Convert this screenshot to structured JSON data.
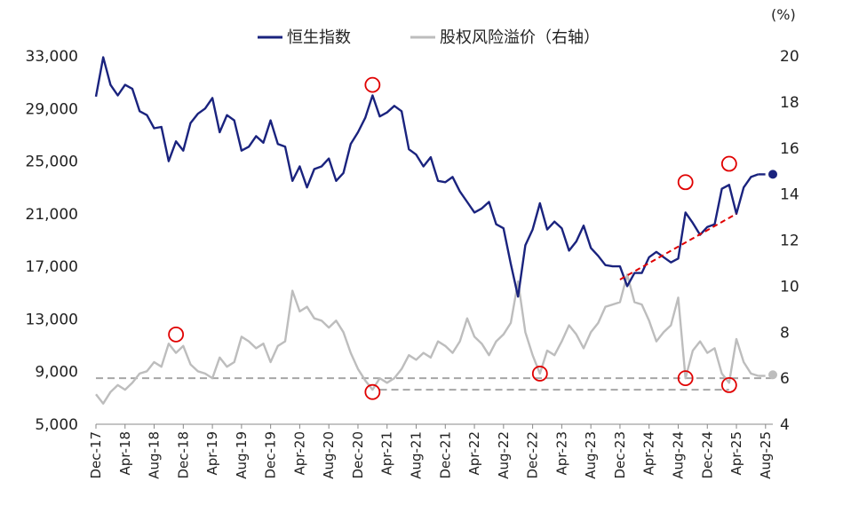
{
  "chart_data": {
    "type": "line",
    "legend": [
      {
        "label": "恒生指数",
        "color": "#1a237e"
      },
      {
        "label": "股权风险溢价（右轴）",
        "color": "#bdbdbd"
      }
    ],
    "unit_right": "(%)",
    "y_left": {
      "ticks": [
        "5,000",
        "9,000",
        "13,000",
        "17,000",
        "21,000",
        "25,000",
        "29,000",
        "33,000"
      ],
      "range": [
        5000,
        33000
      ]
    },
    "y_right": {
      "ticks": [
        "4",
        "6",
        "8",
        "10",
        "12",
        "14",
        "16",
        "18",
        "20"
      ],
      "range": [
        4,
        20
      ]
    },
    "x_ticks": [
      "Dec-17",
      "Apr-18",
      "Aug-18",
      "Dec-18",
      "Apr-19",
      "Aug-19",
      "Dec-19",
      "Apr-20",
      "Aug-20",
      "Dec-20",
      "Apr-21",
      "Aug-21",
      "Dec-21",
      "Apr-22",
      "Aug-22",
      "Dec-22",
      "Apr-23",
      "Aug-23",
      "Dec-23",
      "Apr-24",
      "Aug-24",
      "Dec-24",
      "Apr-25",
      "Aug-25"
    ],
    "series": [
      {
        "name": "恒生指数",
        "axis": "left",
        "color": "#1a237e",
        "points": [
          [
            "2017-12",
            29900
          ],
          [
            "2018-01",
            32900
          ],
          [
            "2018-02",
            30800
          ],
          [
            "2018-03",
            30000
          ],
          [
            "2018-04",
            30800
          ],
          [
            "2018-05",
            30500
          ],
          [
            "2018-06",
            28800
          ],
          [
            "2018-07",
            28500
          ],
          [
            "2018-08",
            27500
          ],
          [
            "2018-09",
            27600
          ],
          [
            "2018-10",
            25000
          ],
          [
            "2018-11",
            26500
          ],
          [
            "2018-12",
            25800
          ],
          [
            "2019-01",
            27900
          ],
          [
            "2019-02",
            28600
          ],
          [
            "2019-03",
            29000
          ],
          [
            "2019-04",
            29800
          ],
          [
            "2019-05",
            27200
          ],
          [
            "2019-06",
            28500
          ],
          [
            "2019-07",
            28100
          ],
          [
            "2019-08",
            25800
          ],
          [
            "2019-09",
            26100
          ],
          [
            "2019-10",
            26900
          ],
          [
            "2019-11",
            26400
          ],
          [
            "2019-12",
            28100
          ],
          [
            "2020-01",
            26300
          ],
          [
            "2020-02",
            26100
          ],
          [
            "2020-03",
            23500
          ],
          [
            "2020-04",
            24600
          ],
          [
            "2020-05",
            23000
          ],
          [
            "2020-06",
            24400
          ],
          [
            "2020-07",
            24600
          ],
          [
            "2020-08",
            25200
          ],
          [
            "2020-09",
            23500
          ],
          [
            "2020-10",
            24100
          ],
          [
            "2020-11",
            26300
          ],
          [
            "2020-12",
            27200
          ],
          [
            "2021-01",
            28300
          ],
          [
            "2021-02",
            30000
          ],
          [
            "2021-03",
            28400
          ],
          [
            "2021-04",
            28700
          ],
          [
            "2021-05",
            29200
          ],
          [
            "2021-06",
            28800
          ],
          [
            "2021-07",
            25900
          ],
          [
            "2021-08",
            25500
          ],
          [
            "2021-09",
            24600
          ],
          [
            "2021-10",
            25300
          ],
          [
            "2021-11",
            23500
          ],
          [
            "2021-12",
            23400
          ],
          [
            "2022-01",
            23800
          ],
          [
            "2022-02",
            22700
          ],
          [
            "2022-03",
            21900
          ],
          [
            "2022-04",
            21100
          ],
          [
            "2022-05",
            21400
          ],
          [
            "2022-06",
            21900
          ],
          [
            "2022-07",
            20200
          ],
          [
            "2022-08",
            19900
          ],
          [
            "2022-09",
            17200
          ],
          [
            "2022-10",
            14700
          ],
          [
            "2022-11",
            18600
          ],
          [
            "2022-12",
            19800
          ],
          [
            "2023-01",
            21800
          ],
          [
            "2023-02",
            19800
          ],
          [
            "2023-03",
            20400
          ],
          [
            "2023-04",
            19900
          ],
          [
            "2023-05",
            18200
          ],
          [
            "2023-06",
            18900
          ],
          [
            "2023-07",
            20100
          ],
          [
            "2023-08",
            18400
          ],
          [
            "2023-09",
            17800
          ],
          [
            "2023-10",
            17100
          ],
          [
            "2023-11",
            17000
          ],
          [
            "2023-12",
            17000
          ],
          [
            "2024-01",
            15500
          ],
          [
            "2024-02",
            16500
          ],
          [
            "2024-03",
            16500
          ],
          [
            "2024-04",
            17700
          ],
          [
            "2024-05",
            18100
          ],
          [
            "2024-06",
            17700
          ],
          [
            "2024-07",
            17300
          ],
          [
            "2024-08",
            17600
          ],
          [
            "2024-09",
            21100
          ],
          [
            "2024-10",
            20300
          ],
          [
            "2024-11",
            19400
          ],
          [
            "2024-12",
            20000
          ],
          [
            "2025-01",
            20200
          ],
          [
            "2025-02",
            22900
          ],
          [
            "2025-03",
            23200
          ],
          [
            "2025-04",
            21000
          ],
          [
            "2025-05",
            23000
          ],
          [
            "2025-06",
            23800
          ],
          [
            "2025-07",
            24000
          ],
          [
            "2025-08",
            24000
          ],
          [
            "2025-09",
            24000
          ]
        ],
        "dashed_from": "2025-07"
      },
      {
        "name": "股权风险溢价（右轴）",
        "axis": "right",
        "color": "#bdbdbd",
        "points": [
          [
            "2017-12",
            5.3
          ],
          [
            "2018-01",
            4.9
          ],
          [
            "2018-02",
            5.4
          ],
          [
            "2018-03",
            5.7
          ],
          [
            "2018-04",
            5.5
          ],
          [
            "2018-05",
            5.8
          ],
          [
            "2018-06",
            6.2
          ],
          [
            "2018-07",
            6.3
          ],
          [
            "2018-08",
            6.7
          ],
          [
            "2018-09",
            6.5
          ],
          [
            "2018-10",
            7.5
          ],
          [
            "2018-11",
            7.1
          ],
          [
            "2018-12",
            7.4
          ],
          [
            "2019-01",
            6.6
          ],
          [
            "2019-02",
            6.3
          ],
          [
            "2019-03",
            6.2
          ],
          [
            "2019-04",
            6.0
          ],
          [
            "2019-05",
            6.9
          ],
          [
            "2019-06",
            6.5
          ],
          [
            "2019-07",
            6.7
          ],
          [
            "2019-08",
            7.8
          ],
          [
            "2019-09",
            7.6
          ],
          [
            "2019-10",
            7.3
          ],
          [
            "2019-11",
            7.5
          ],
          [
            "2019-12",
            6.7
          ],
          [
            "2020-01",
            7.4
          ],
          [
            "2020-02",
            7.6
          ],
          [
            "2020-03",
            9.8
          ],
          [
            "2020-04",
            8.9
          ],
          [
            "2020-05",
            9.1
          ],
          [
            "2020-06",
            8.6
          ],
          [
            "2020-07",
            8.5
          ],
          [
            "2020-08",
            8.2
          ],
          [
            "2020-09",
            8.5
          ],
          [
            "2020-10",
            8.0
          ],
          [
            "2020-11",
            7.1
          ],
          [
            "2020-12",
            6.4
          ],
          [
            "2021-01",
            5.9
          ],
          [
            "2021-02",
            5.5
          ],
          [
            "2021-03",
            6.0
          ],
          [
            "2021-04",
            5.8
          ],
          [
            "2021-05",
            6.0
          ],
          [
            "2021-06",
            6.4
          ],
          [
            "2021-07",
            7.0
          ],
          [
            "2021-08",
            6.8
          ],
          [
            "2021-09",
            7.1
          ],
          [
            "2021-10",
            6.9
          ],
          [
            "2021-11",
            7.6
          ],
          [
            "2021-12",
            7.4
          ],
          [
            "2022-01",
            7.1
          ],
          [
            "2022-02",
            7.6
          ],
          [
            "2022-03",
            8.6
          ],
          [
            "2022-04",
            7.8
          ],
          [
            "2022-05",
            7.5
          ],
          [
            "2022-06",
            7.0
          ],
          [
            "2022-07",
            7.6
          ],
          [
            "2022-08",
            7.9
          ],
          [
            "2022-09",
            8.4
          ],
          [
            "2022-10",
            10.2
          ],
          [
            "2022-11",
            8.0
          ],
          [
            "2022-12",
            7.0
          ],
          [
            "2023-01",
            6.2
          ],
          [
            "2023-02",
            7.2
          ],
          [
            "2023-03",
            7.0
          ],
          [
            "2023-04",
            7.6
          ],
          [
            "2023-05",
            8.3
          ],
          [
            "2023-06",
            7.9
          ],
          [
            "2023-07",
            7.3
          ],
          [
            "2023-08",
            8.0
          ],
          [
            "2023-09",
            8.4
          ],
          [
            "2023-10",
            9.1
          ],
          [
            "2023-11",
            9.2
          ],
          [
            "2023-12",
            9.3
          ],
          [
            "2024-01",
            10.5
          ],
          [
            "2024-02",
            9.3
          ],
          [
            "2024-03",
            9.2
          ],
          [
            "2024-04",
            8.5
          ],
          [
            "2024-05",
            7.6
          ],
          [
            "2024-06",
            8.0
          ],
          [
            "2024-07",
            8.3
          ],
          [
            "2024-08",
            9.5
          ],
          [
            "2024-09",
            6.0
          ],
          [
            "2024-10",
            7.2
          ],
          [
            "2024-11",
            7.6
          ],
          [
            "2024-12",
            7.1
          ],
          [
            "2025-01",
            7.3
          ],
          [
            "2025-02",
            6.2
          ],
          [
            "2025-03",
            5.8
          ],
          [
            "2025-04",
            7.7
          ],
          [
            "2025-05",
            6.7
          ],
          [
            "2025-06",
            6.2
          ],
          [
            "2025-07",
            6.1
          ],
          [
            "2025-08",
            6.1
          ],
          [
            "2025-09",
            6.15
          ]
        ],
        "dashed_from": "2025-07"
      }
    ],
    "reference_lines": [
      {
        "axis": "right",
        "value": 6.0,
        "from": "2017-12",
        "to": "2025-09",
        "color": "#a6a6a6",
        "style": "dashed"
      },
      {
        "axis": "right",
        "value": 5.5,
        "from": "2021-03",
        "to": "2025-03",
        "color": "#a6a6a6",
        "style": "dashed"
      }
    ],
    "trendline": {
      "axis": "left",
      "from": [
        "2023-12",
        16000
      ],
      "to": [
        "2025-04",
        21000
      ],
      "color": "#e00000",
      "style": "dashed"
    },
    "highlight_circles": [
      {
        "axis": "left",
        "x": "2021-02",
        "y": 30800
      },
      {
        "axis": "left",
        "x": "2024-09",
        "y": 23400
      },
      {
        "axis": "left",
        "x": "2025-03",
        "y": 24800
      },
      {
        "axis": "right",
        "x": "2018-11",
        "y": 7.9
      },
      {
        "axis": "right",
        "x": "2021-02",
        "y": 5.4
      },
      {
        "axis": "right",
        "x": "2023-01",
        "y": 6.2
      },
      {
        "axis": "right",
        "x": "2024-09",
        "y": 6.0
      },
      {
        "axis": "right",
        "x": "2025-03",
        "y": 5.7
      }
    ]
  }
}
